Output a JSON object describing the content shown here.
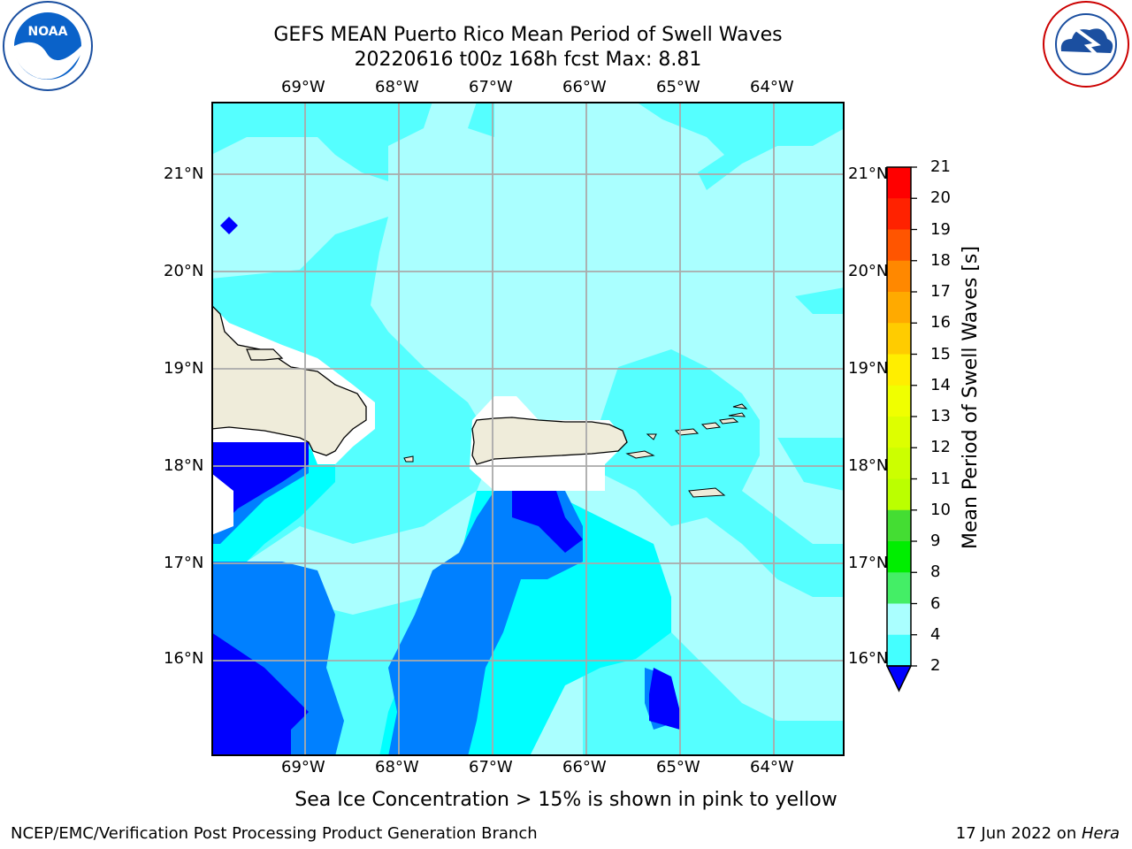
{
  "header": {
    "title_line1": "GEFS MEAN Puerto Rico Mean Period of Swell Waves",
    "title_line2": "20220616 t00z 168h fcst   Max: 8.81"
  },
  "logos": {
    "left": "noaa-logo",
    "right": "national-weather-service-logo"
  },
  "map": {
    "lon_labels": [
      "69°W",
      "68°W",
      "67°W",
      "66°W",
      "65°W",
      "64°W"
    ],
    "lat_labels": [
      "21°N",
      "20°N",
      "19°N",
      "18°N",
      "17°N",
      "16°N"
    ],
    "land_color": "#efecda",
    "coast_color": "#000000",
    "grid_color": "#aaaaaa"
  },
  "colorbar": {
    "title": "Mean Period of Swell Waves [s]",
    "ticks": [
      "21",
      "20",
      "19",
      "18",
      "17",
      "16",
      "15",
      "14",
      "13",
      "12",
      "11",
      "10",
      "9",
      "8",
      "6",
      "4",
      "2"
    ],
    "colors": [
      "#ff0000",
      "#ff2200",
      "#ff5500",
      "#ff8800",
      "#ffaa00",
      "#ffcc00",
      "#ffee00",
      "#f0ff00",
      "#ddff00",
      "#ccff00",
      "#bbff00",
      "#44dd33",
      "#00ee00",
      "#44ee66",
      "#aaffff",
      "#44ffff",
      "#00ffff",
      "#0080ff",
      "#0000ff"
    ],
    "under_color": "#0000ff"
  },
  "footer": {
    "caption": "Sea Ice Concentration > 15% is shown in pink to yellow",
    "left_text": "NCEP/EMC/Verification Post Processing Product Generation Branch",
    "right_date": "17 Jun 2022 on ",
    "right_host": "Hera"
  }
}
